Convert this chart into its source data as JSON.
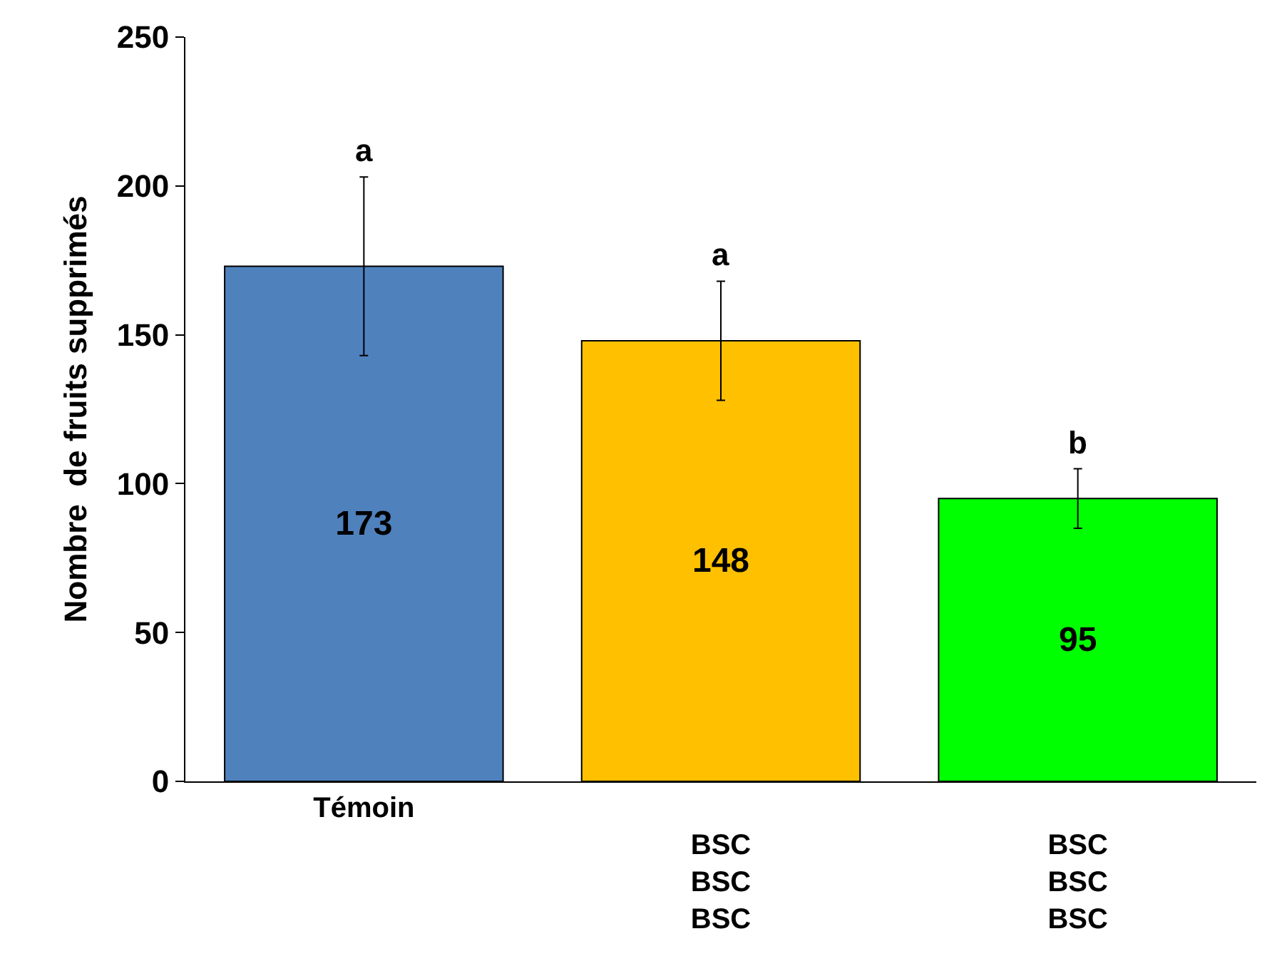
{
  "chart_data": {
    "type": "bar",
    "ylabel": "Nombre  de fruits supprimés",
    "categories": [
      "Témoin",
      "\nBSC\nBSC\nBSC",
      "\nBSC\nBSC\nBSC"
    ],
    "values": [
      173,
      148,
      95
    ],
    "colors": [
      "#4f81bd",
      "#ffc000",
      "#00ff00"
    ],
    "errors": [
      30,
      20,
      10
    ],
    "data_labels": true,
    "ylim": [
      0,
      250
    ],
    "yticks": [
      0,
      50,
      100,
      150,
      200,
      250
    ],
    "grid": false,
    "annotations": [
      "a",
      "a",
      "b"
    ]
  }
}
